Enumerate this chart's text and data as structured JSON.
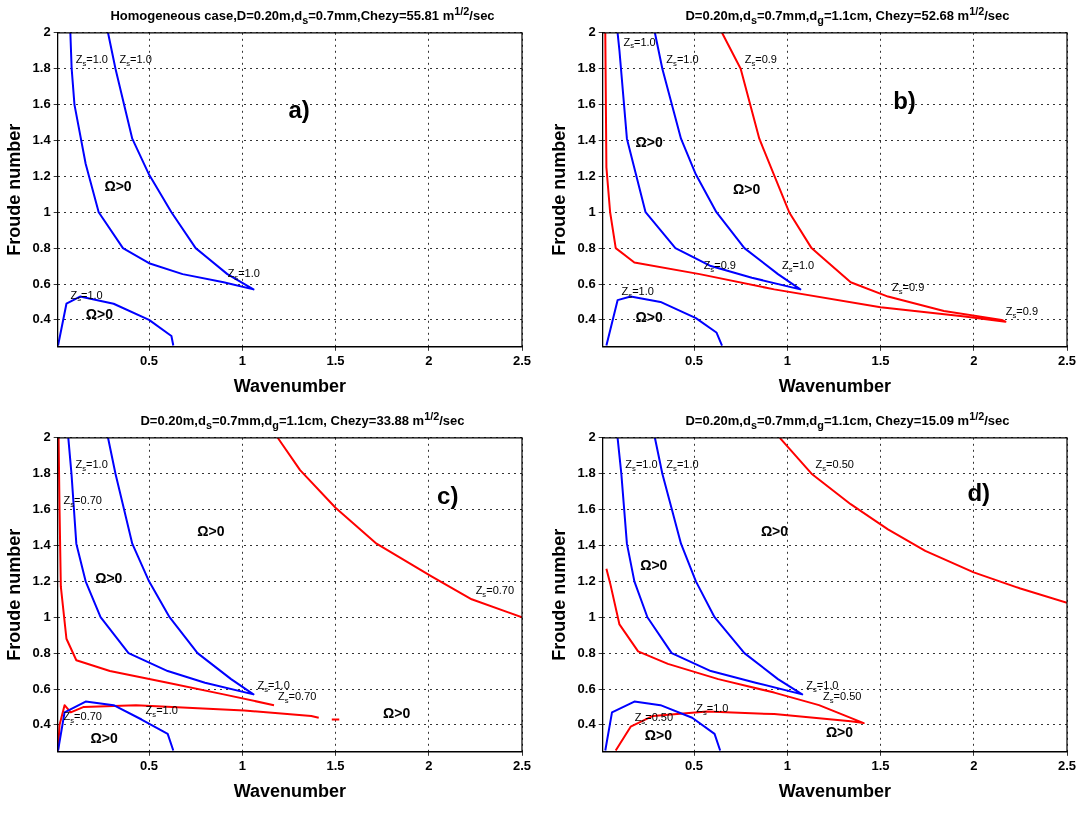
{
  "chart_data": [
    {
      "type": "line",
      "title": "Homogeneous case,D=0.20m,d$_{s}$=0.7mm,Chezy=55.81 m$^{1/2}$/sec",
      "xlabel": "Wavenumber",
      "ylabel": "Froude number",
      "xlim": [
        0.01,
        2.5
      ],
      "ylim": [
        0.25,
        2
      ],
      "xticks": [
        0.5,
        1,
        1.5,
        2,
        2.5
      ],
      "yticks": [
        0.4,
        0.6,
        0.8,
        1,
        1.2,
        1.4,
        1.6,
        1.8,
        2
      ],
      "grid": true,
      "series": [
        {
          "color": "#0000ff",
          "x": [
            0.28,
            0.32,
            0.41,
            0.5,
            0.62,
            0.75,
            0.92,
            1.06,
            0.9,
            0.68,
            0.5,
            0.36,
            0.23,
            0.16,
            0.1,
            0.085,
            0.078
          ],
          "values": [
            2,
            1.8,
            1.41,
            1.21,
            1.0,
            0.8,
            0.655,
            0.57,
            0.61,
            0.655,
            0.716,
            0.8,
            1.0,
            1.27,
            1.6,
            1.8,
            2
          ]
        },
        {
          "color": "#0000ff",
          "x": [
            0.012,
            0.057,
            0.13,
            0.31,
            0.5,
            0.62,
            0.63
          ],
          "values": [
            0.257,
            0.49,
            0.53,
            0.49,
            0.4,
            0.31,
            0.257
          ]
        }
      ],
      "annotations": [
        "a)",
        "Ω>0",
        "Ω>0",
        {
          "text": "Z$_{s}$=1.0",
          "x": 0.32,
          "y": 1.8
        },
        {
          "text": "Z$_{s}$=1.0",
          "x": 0.085,
          "y": 1.8
        },
        {
          "text": "Z$_{s}$=1.0",
          "x": 0.9,
          "y": 0.61
        },
        {
          "text": "Z$_{s}$=1.0",
          "x": 0.057,
          "y": 0.49
        }
      ]
    },
    {
      "type": "line",
      "title": "D=0.20m,d$_{s}$=0.7mm,d$_{g}$=1.1cm, Chezy=52.68 m$^{1/2}$/sec",
      "xlabel": "Wavenumber",
      "ylabel": "Froude number",
      "xlim": [
        0.01,
        2.5
      ],
      "ylim": [
        0.25,
        2
      ],
      "xticks": [
        0.5,
        1,
        1.5,
        2,
        2.5
      ],
      "yticks": [
        0.4,
        0.6,
        0.8,
        1,
        1.2,
        1.4,
        1.6,
        1.8,
        2
      ],
      "grid": true,
      "series": [
        {
          "color": "#0000ff",
          "x": [
            0.29,
            0.33,
            0.43,
            0.51,
            0.62,
            0.77,
            0.95,
            1.07,
            0.81,
            0.59,
            0.4,
            0.24,
            0.14,
            0.1,
            0.09
          ],
          "values": [
            2,
            1.8,
            1.41,
            1.21,
            1.0,
            0.8,
            0.655,
            0.57,
            0.635,
            0.7,
            0.8,
            1.0,
            1.41,
            1.9,
            2
          ]
        },
        {
          "color": "#0000ff",
          "x": [
            0.03,
            0.09,
            0.16,
            0.32,
            0.51,
            0.62,
            0.65
          ],
          "values": [
            0.257,
            0.51,
            0.53,
            0.5,
            0.41,
            0.33,
            0.257
          ]
        },
        {
          "color": "#ff0000",
          "x": [
            0.024,
            0.03,
            0.05,
            0.08,
            0.18,
            0.53,
            0.93,
            1.5,
            1.94,
            2.17,
            2.15,
            1.84,
            1.54,
            1.34,
            1.13,
            1.01,
            0.85,
            0.75,
            0.65
          ],
          "values": [
            2,
            1.25,
            1.0,
            0.8,
            0.72,
            0.655,
            0.57,
            0.47,
            0.42,
            0.39,
            0.4,
            0.45,
            0.53,
            0.61,
            0.8,
            1.0,
            1.41,
            1.8,
            2
          ]
        }
      ],
      "annotations": [
        "b)",
        "Ω>0",
        "Ω>0",
        "Ω>0",
        {
          "text": "Z$_{s}$=1.0",
          "x": 0.1,
          "y": 1.9
        },
        {
          "text": "Z$_{s}$=1.0",
          "x": 0.33,
          "y": 1.8
        },
        {
          "text": "Z$_{s}$=1.0",
          "x": 0.95,
          "y": 0.655
        },
        {
          "text": "Z$_{s}$=1.0",
          "x": 0.09,
          "y": 0.51
        },
        {
          "text": "Z$_{s}$=0.9",
          "x": 0.75,
          "y": 1.8
        },
        {
          "text": "Z$_{s}$=0.9",
          "x": 0.53,
          "y": 0.655
        },
        {
          "text": "Z$_{s}$=0.9",
          "x": 1.54,
          "y": 0.53
        },
        {
          "text": "Z$_{s}$=0.9",
          "x": 2.15,
          "y": 0.4
        }
      ]
    },
    {
      "type": "line",
      "title": "D=0.20m,d$_{s}$=0.7mm,d$_{g}$=1.1cm, Chezy=33.88 m$^{1/2}$/sec",
      "xlabel": "Wavenumber",
      "ylabel": "Froude number",
      "xlim": [
        0.01,
        2.5
      ],
      "ylim": [
        0.25,
        2
      ],
      "xticks": [
        0.5,
        1,
        1.5,
        2,
        2.5
      ],
      "yticks": [
        0.4,
        0.6,
        0.8,
        1,
        1.2,
        1.4,
        1.6,
        1.8,
        2
      ],
      "grid": true,
      "series": [
        {
          "color": "#0000ff",
          "x": [
            0.28,
            0.32,
            0.41,
            0.5,
            0.61,
            0.76,
            0.94,
            1.06,
            0.8,
            0.6,
            0.39,
            0.24,
            0.16,
            0.11,
            0.084,
            0.067
          ],
          "values": [
            2,
            1.8,
            1.41,
            1.2,
            1.0,
            0.8,
            0.655,
            0.57,
            0.635,
            0.7,
            0.8,
            1.0,
            1.2,
            1.41,
            1.8,
            2
          ]
        },
        {
          "color": "#0000ff",
          "x": [
            0.012,
            0.047,
            0.16,
            0.31,
            0.46,
            0.6,
            0.63
          ],
          "values": [
            0.257,
            0.47,
            0.53,
            0.51,
            0.43,
            0.35,
            0.257
          ]
        },
        {
          "color": "#ff0000",
          "x": [
            0.015,
            0.02,
            0.027,
            0.057,
            0.11,
            0.29,
            0.6,
            0.9,
            1.17
          ],
          "values": [
            2,
            1.6,
            1.17,
            0.88,
            0.76,
            0.7,
            0.635,
            0.57,
            0.51
          ]
        },
        {
          "color": "#ff0000",
          "x": [
            1.19,
            1.31,
            1.5,
            1.72,
            2.01,
            2.23,
            2.5
          ],
          "values": [
            2,
            1.82,
            1.61,
            1.41,
            1.23,
            1.1,
            1.0
          ]
        },
        {
          "color": "#ff0000",
          "x": [
            0.012,
            0.02,
            0.047,
            0.08,
            0.15,
            0.43,
            1.01,
            1.37,
            1.41
          ],
          "values": [
            0.257,
            0.4,
            0.51,
            0.47,
            0.5,
            0.51,
            0.48,
            0.45,
            0.44
          ]
        },
        {
          "color": "#ff0000",
          "x": [
            1.48,
            1.52
          ],
          "values": [
            0.43,
            0.43
          ]
        }
      ],
      "annotations": [
        "c)",
        "Ω>0",
        "Ω>0",
        "Ω>0",
        "Ω>0",
        {
          "text": "Z$_{s}$=1.0",
          "x": 0.084,
          "y": 1.8
        },
        {
          "text": "Z$_{s}$=1.0",
          "x": 1.06,
          "y": 0.57
        },
        {
          "text": "Z$_{s}$=1.0",
          "x": 0.46,
          "y": 0.43
        },
        {
          "text": "Z$_{s}$=0.70",
          "x": 2.23,
          "y": 1.1
        },
        {
          "text": "Z$_{s}$=0.70",
          "x": 0.02,
          "y": 1.6
        },
        {
          "text": "Z$_{s}$=0.70",
          "x": 1.17,
          "y": 0.51
        },
        {
          "text": "Z$_{s}$=0.70",
          "x": 0.02,
          "y": 0.4
        }
      ]
    },
    {
      "type": "line",
      "title": "D=0.20m,d$_{s}$=0.7mm,d$_{g}$=1.1cm, Chezy=15.09 m$^{1/2}$/sec",
      "xlabel": "Wavenumber",
      "ylabel": "Froude number",
      "xlim": [
        0.01,
        2.5
      ],
      "ylim": [
        0.25,
        2
      ],
      "xticks": [
        0.5,
        1,
        1.5,
        2,
        2.5
      ],
      "yticks": [
        0.4,
        0.6,
        0.8,
        1,
        1.2,
        1.4,
        1.6,
        1.8,
        2
      ],
      "grid": true,
      "series": [
        {
          "color": "#0000ff",
          "x": [
            0.29,
            0.33,
            0.43,
            0.51,
            0.61,
            0.77,
            0.95,
            1.08,
            0.83,
            0.59,
            0.38,
            0.25,
            0.18,
            0.14,
            0.11,
            0.09
          ],
          "values": [
            2,
            1.8,
            1.41,
            1.2,
            1.0,
            0.8,
            0.655,
            0.57,
            0.635,
            0.7,
            0.8,
            1.0,
            1.2,
            1.41,
            1.8,
            2
          ]
        },
        {
          "color": "#0000ff",
          "x": [
            0.024,
            0.06,
            0.18,
            0.32,
            0.49,
            0.61,
            0.64
          ],
          "values": [
            0.257,
            0.47,
            0.53,
            0.51,
            0.44,
            0.35,
            0.257
          ]
        },
        {
          "color": "#ff0000",
          "x": [
            0.03,
            0.05,
            0.1,
            0.2,
            0.36,
            0.63,
            0.93,
            1.17,
            1.41,
            1.34,
            0.93,
            0.57,
            0.28,
            0.16,
            0.08
          ],
          "values": [
            1.27,
            1.19,
            0.96,
            0.81,
            0.74,
            0.655,
            0.58,
            0.51,
            0.41,
            0.42,
            0.46,
            0.475,
            0.45,
            0.39,
            0.257
          ]
        },
        {
          "color": "#ff0000",
          "x": [
            0.96,
            1.13,
            1.34,
            1.54,
            1.74,
            2.0,
            2.25,
            2.5
          ],
          "values": [
            2,
            1.8,
            1.63,
            1.49,
            1.37,
            1.25,
            1.16,
            1.08
          ]
        }
      ],
      "annotations": [
        "d)",
        "Ω>0",
        "Ω>0",
        "Ω>0",
        "Ω>0",
        {
          "text": "Z$_{s}$=1.0",
          "x": 0.11,
          "y": 1.8
        },
        {
          "text": "Z$_{s}$=1.0",
          "x": 0.33,
          "y": 1.8
        },
        {
          "text": "Z$_{s}$=1.0",
          "x": 1.08,
          "y": 0.57
        },
        {
          "text": "Z$_{s}$=1.0",
          "x": 0.49,
          "y": 0.44
        },
        {
          "text": "Z$_{s}$=0.50",
          "x": 1.13,
          "y": 1.8
        },
        {
          "text": "Z$_{s}$=0.50",
          "x": 1.17,
          "y": 0.51
        },
        {
          "text": "Z$_{s}$=0.50",
          "x": 0.16,
          "y": 0.39
        }
      ]
    }
  ]
}
